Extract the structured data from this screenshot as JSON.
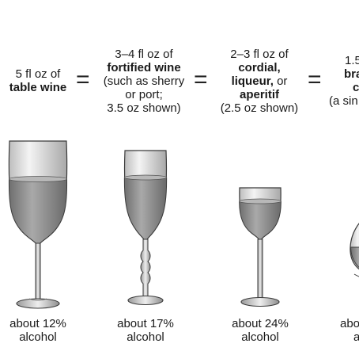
{
  "columns": [
    {
      "lines": [
        {
          "text": "5 fl oz of",
          "bold": false
        },
        {
          "text": "table wine",
          "bold": true
        }
      ],
      "footer": [
        "about 12%",
        "alcohol"
      ]
    },
    {
      "lines": [
        {
          "text": "3–4 fl oz of",
          "bold": false
        },
        {
          "text": "fortified wine",
          "bold": true
        },
        {
          "text": "(such as sherry",
          "bold": false
        },
        {
          "text": "or port;",
          "bold": false
        },
        {
          "text": "3.5 oz shown)",
          "bold": false
        }
      ],
      "footer": [
        "about 17%",
        "alcohol"
      ]
    },
    {
      "lines": [
        {
          "text": "2–3 fl oz of",
          "bold": false
        },
        {
          "text": "cordial,",
          "bold": true
        },
        {
          "text": "liqueur,",
          "bold": true,
          "suffix": " or"
        },
        {
          "text": "aperitif",
          "bold": true
        },
        {
          "text": "(2.5 oz shown)",
          "bold": false
        }
      ],
      "footer": [
        "about 24%",
        "alcohol"
      ]
    },
    {
      "lines": [
        {
          "text": "1.5",
          "bold": false
        },
        {
          "text": "bra",
          "bold": true
        },
        {
          "text": "c",
          "bold": true
        },
        {
          "text": "(a sin",
          "bold": false
        }
      ],
      "footer": [
        "abo",
        "a"
      ]
    }
  ],
  "equals_sign": "=",
  "colors": {
    "liquid": "#8c8c8c",
    "glass": "#e6e6e6",
    "outline": "#3a3a3a"
  }
}
